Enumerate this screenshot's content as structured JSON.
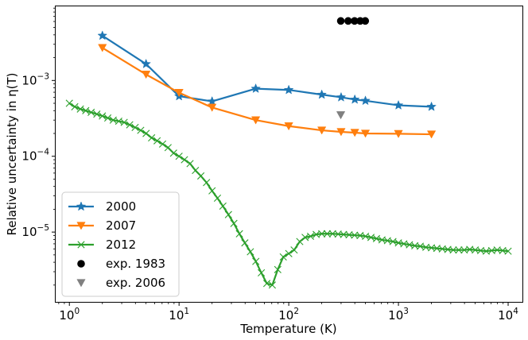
{
  "chart_data": {
    "type": "line",
    "title": "",
    "xlabel": "Temperature (K)",
    "ylabel": "Relative uncertainty in η(T)",
    "xscale": "log",
    "yscale": "log",
    "xlim": [
      0.75,
      13500
    ],
    "ylim": [
      1.2e-06,
      0.0095
    ],
    "grid": false,
    "legend_position": "lower-left",
    "x_ticks": [
      {
        "value": 1,
        "base": "10",
        "exp": "0"
      },
      {
        "value": 10,
        "base": "10",
        "exp": "1"
      },
      {
        "value": 100,
        "base": "10",
        "exp": "2"
      },
      {
        "value": 1000,
        "base": "10",
        "exp": "3"
      },
      {
        "value": 10000,
        "base": "10",
        "exp": "4"
      }
    ],
    "y_ticks": [
      {
        "value": 1e-05,
        "base": "10",
        "exp": "−5"
      },
      {
        "value": 0.0001,
        "base": "10",
        "exp": "−4"
      },
      {
        "value": 0.001,
        "base": "10",
        "exp": "−3"
      }
    ],
    "series": [
      {
        "name": "2000",
        "color": "#1f77b4",
        "marker": "star",
        "line": true,
        "x": [
          2,
          5,
          10,
          20,
          50,
          100,
          200,
          300,
          400,
          500,
          1000,
          2000
        ],
        "y": [
          0.0039,
          0.00165,
          0.00062,
          0.00053,
          0.00078,
          0.00075,
          0.00065,
          0.0006,
          0.00056,
          0.00054,
          0.00047,
          0.00045
        ]
      },
      {
        "name": "2007",
        "color": "#ff7f0e",
        "marker": "triangle-down",
        "line": true,
        "x": [
          2,
          5,
          10,
          20,
          50,
          100,
          200,
          300,
          400,
          500,
          1000,
          2000
        ],
        "y": [
          0.0027,
          0.0012,
          0.00069,
          0.00044,
          0.0003,
          0.00025,
          0.00022,
          0.00021,
          0.000205,
          0.0002,
          0.000198,
          0.000195
        ]
      },
      {
        "name": "2012",
        "color": "#2ca02c",
        "marker": "x",
        "line": true,
        "x": [
          1,
          1.12,
          1.26,
          1.41,
          1.58,
          1.78,
          2,
          2.24,
          2.51,
          2.82,
          3.16,
          3.55,
          3.98,
          4.47,
          5.01,
          5.62,
          6.31,
          7.08,
          7.94,
          8.91,
          10,
          11.2,
          12.6,
          14.1,
          15.8,
          17.8,
          20,
          22.4,
          25.1,
          28.2,
          31.6,
          35.5,
          39.8,
          44.7,
          50.1,
          56.2,
          63.1,
          70.8,
          79.4,
          89.1,
          100,
          112,
          126,
          141,
          158,
          178,
          200,
          224,
          251,
          282,
          316,
          355,
          398,
          447,
          501,
          562,
          631,
          708,
          794,
          891,
          1000,
          1120,
          1260,
          1410,
          1580,
          1780,
          2000,
          2240,
          2510,
          2820,
          3160,
          3550,
          3980,
          4470,
          5010,
          5620,
          6310,
          7080,
          7940,
          8910,
          10000
        ],
        "y": [
          0.0005,
          0.00045,
          0.00042,
          0.0004,
          0.00038,
          0.00036,
          0.00034,
          0.00032,
          0.0003,
          0.00029,
          0.00028,
          0.00026,
          0.00024,
          0.00022,
          0.0002,
          0.000175,
          0.00016,
          0.000145,
          0.00013,
          0.00011,
          0.0001,
          9e-05,
          8e-05,
          6.5e-05,
          5.5e-05,
          4.5e-05,
          3.5e-05,
          2.8e-05,
          2.2e-05,
          1.7e-05,
          1.3e-05,
          9.5e-06,
          7.2e-06,
          5.5e-06,
          4.1e-06,
          2.9e-06,
          2.1e-06,
          2e-06,
          3.2e-06,
          4.7e-06,
          5.2e-06,
          5.8e-06,
          7.5e-06,
          8.5e-06,
          8.8e-06,
          9.3e-06,
          9.5e-06,
          9.5e-06,
          9.5e-06,
          9.4e-06,
          9.3e-06,
          9.2e-06,
          9.1e-06,
          9e-06,
          8.8e-06,
          8.5e-06,
          8.2e-06,
          7.9e-06,
          7.7e-06,
          7.5e-06,
          7.2e-06,
          7e-06,
          6.8e-06,
          6.6e-06,
          6.5e-06,
          6.3e-06,
          6.2e-06,
          6.1e-06,
          6e-06,
          5.9e-06,
          5.8e-06,
          5.8e-06,
          5.8e-06,
          5.9e-06,
          5.8e-06,
          5.7e-06,
          5.6e-06,
          5.7e-06,
          5.8e-06,
          5.7e-06,
          5.6e-06
        ]
      },
      {
        "name": "exp. 1983",
        "color": "#000000",
        "marker": "circle",
        "line": false,
        "x": [
          298,
          348,
          398,
          448,
          498
        ],
        "y": [
          0.0061,
          0.0061,
          0.0061,
          0.0061,
          0.0061
        ]
      },
      {
        "name": "exp. 2006",
        "color": "#808080",
        "marker": "triangle-down",
        "line": false,
        "x": [
          298
        ],
        "y": [
          0.00035
        ]
      }
    ]
  }
}
